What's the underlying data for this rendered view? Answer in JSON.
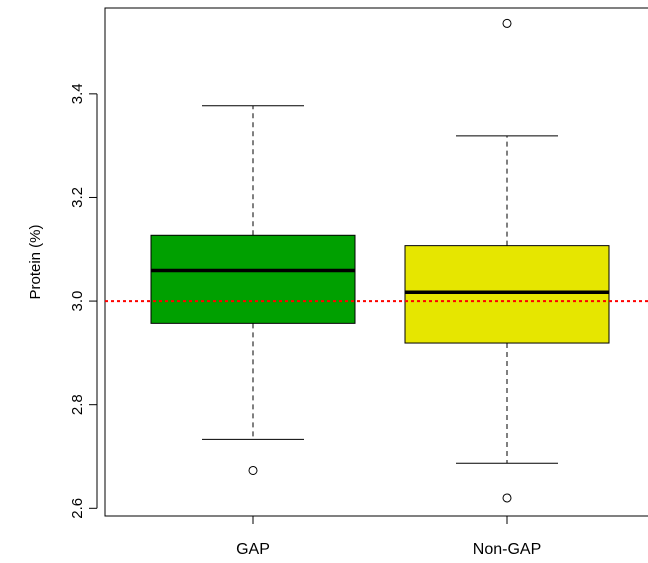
{
  "chart_data": {
    "type": "boxplot",
    "ylabel": "Protein (%)",
    "xlabel": "",
    "ylim": [
      2.59,
      3.57
    ],
    "yticks": [
      2.6,
      2.8,
      3.0,
      3.2,
      3.4
    ],
    "ytick_labels": [
      "2.6",
      "2.8",
      "3.0",
      "3.2",
      "3.4"
    ],
    "categories": [
      "GAP",
      "Non-GAP"
    ],
    "boxes": [
      {
        "category": "GAP",
        "whisker_low": 2.733,
        "q1": 2.957,
        "median": 3.059,
        "q3": 3.127,
        "whisker_high": 3.377,
        "outliers": [
          2.673
        ],
        "fill": "#00a000"
      },
      {
        "category": "Non-GAP",
        "whisker_low": 2.687,
        "q1": 2.919,
        "median": 3.017,
        "q3": 3.107,
        "whisker_high": 3.319,
        "outliers": [
          2.62,
          3.536
        ],
        "fill": "#e6e600"
      }
    ],
    "reference_line": {
      "value": 3.0,
      "color": "#ff0000",
      "style": "dotted"
    },
    "grid": false,
    "legend": false
  }
}
